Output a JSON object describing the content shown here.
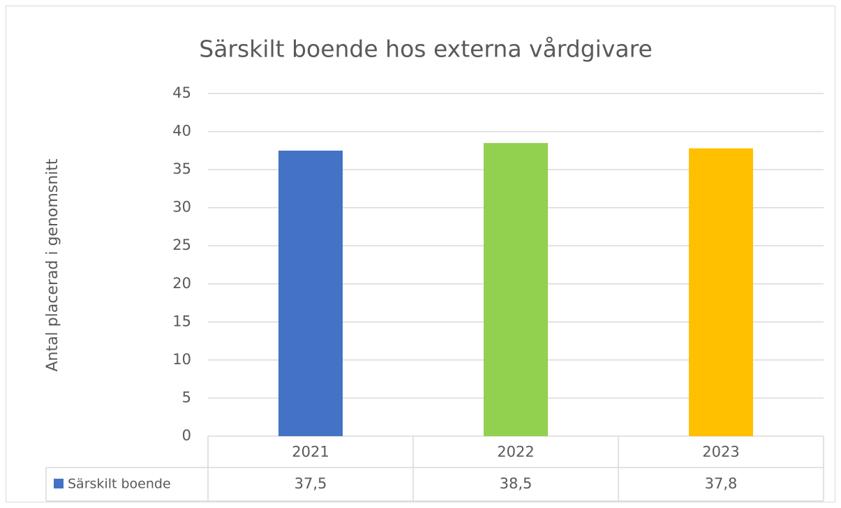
{
  "chart_data": {
    "type": "bar",
    "title": "Särskilt boende hos externa vårdgivare",
    "y_label": "Antal placerad i genomsnitt",
    "categories": [
      "2021",
      "2022",
      "2023"
    ],
    "series": [
      {
        "name": "Särskilt boende",
        "color": "#4472c4",
        "values": [
          37.5,
          38.5,
          37.8
        ],
        "value_labels": [
          "37,5",
          "38,5",
          "37,8"
        ]
      }
    ],
    "bar_colors": [
      "#4472c4",
      "#92d050",
      "#ffc000"
    ],
    "ylim": [
      0,
      45
    ],
    "yticks": [
      0,
      5,
      10,
      15,
      20,
      25,
      30,
      35,
      40,
      45
    ],
    "grid": true,
    "data_table": true
  }
}
